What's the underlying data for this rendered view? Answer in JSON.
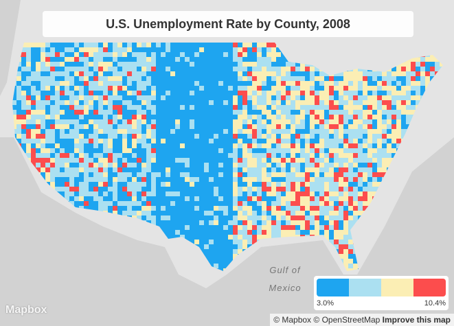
{
  "title": "U.S. Unemployment Rate by County, 2008",
  "water_label": [
    "Gulf of",
    "Mexico"
  ],
  "legend": {
    "colors": [
      "#1ea5f0",
      "#abe0f1",
      "#fbeeb4",
      "#fc4d4d"
    ],
    "min_label": "3.0%",
    "max_label": "10.4%"
  },
  "logo": "Mapbox",
  "attribution": {
    "mapbox": "© Mapbox",
    "osm": "© OpenStreetMap",
    "improve": "Improve this map"
  }
}
